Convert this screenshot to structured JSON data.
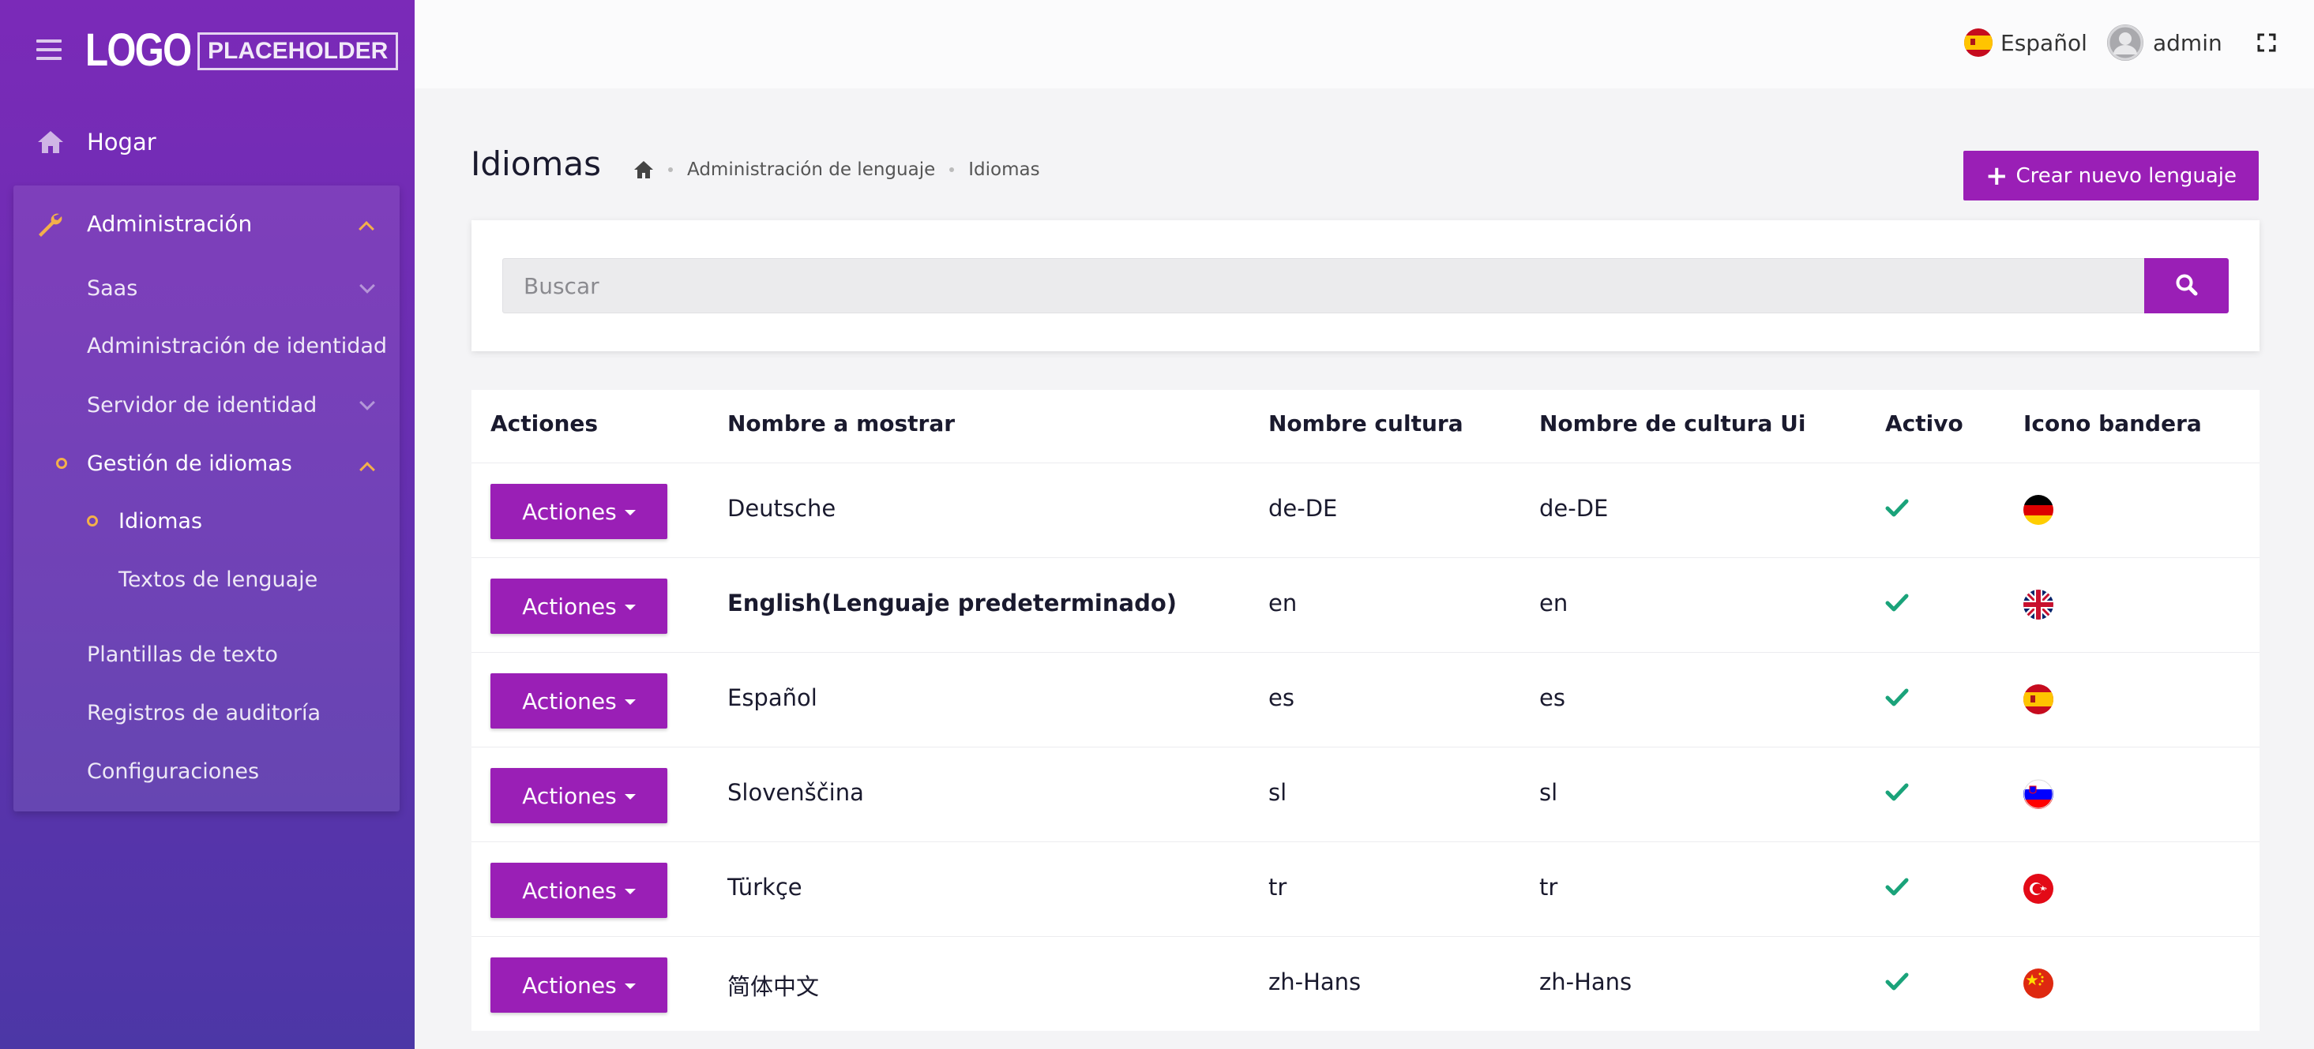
{
  "brand": {
    "logo_main": "LOGO",
    "logo_sub": "PLACEHOLDER"
  },
  "sidebar": {
    "home": {
      "label": "Hogar",
      "icon": "home-icon"
    },
    "admin": {
      "label": "Administración",
      "icon": "wrench-icon"
    },
    "items": [
      {
        "label": "Saas"
      },
      {
        "label": "Administración de identidad"
      },
      {
        "label": "Servidor de identidad"
      },
      {
        "label": "Gestión de idiomas"
      },
      {
        "label": "Idiomas"
      },
      {
        "label": "Textos de lenguaje"
      },
      {
        "label": "Plantillas de texto"
      },
      {
        "label": "Registros de auditoría"
      },
      {
        "label": "Configuraciones"
      }
    ]
  },
  "topbar": {
    "language": "Español",
    "user": "admin"
  },
  "page": {
    "title": "Idiomas",
    "breadcrumb": [
      "Administración de lenguaje",
      "Idiomas"
    ],
    "create_button": "Crear nuevo lenguaje"
  },
  "search": {
    "placeholder": "Buscar"
  },
  "table": {
    "headers": [
      "Actiones",
      "Nombre a mostrar",
      "Nombre cultura",
      "Nombre de cultura Ui",
      "Activo",
      "Icono bandera"
    ],
    "action_label": "Actiones",
    "rows": [
      {
        "display": "Deutsche",
        "culture": "de-DE",
        "ui_culture": "de-DE",
        "active": true,
        "flag": "germany-flag-icon"
      },
      {
        "display": "English(Lenguaje predeterminado)",
        "culture": "en",
        "ui_culture": "en",
        "active": true,
        "flag": "uk-flag-icon"
      },
      {
        "display": "Español",
        "culture": "es",
        "ui_culture": "es",
        "active": true,
        "flag": "spain-flag-icon"
      },
      {
        "display": "Slovenščina",
        "culture": "sl",
        "ui_culture": "sl",
        "active": true,
        "flag": "slovenia-flag-icon"
      },
      {
        "display": "Türkçe",
        "culture": "tr",
        "ui_culture": "tr",
        "active": true,
        "flag": "turkey-flag-icon"
      },
      {
        "display": "简体中文",
        "culture": "zh-Hans",
        "ui_culture": "zh-Hans",
        "active": true,
        "flag": "china-flag-icon"
      }
    ]
  },
  "colors": {
    "primary": "#9a1fb6",
    "sidebar_top": "#7b2ab8",
    "sidebar_bottom": "#4c37a6",
    "accent": "#f3b04a",
    "check": "#1aa37a"
  }
}
